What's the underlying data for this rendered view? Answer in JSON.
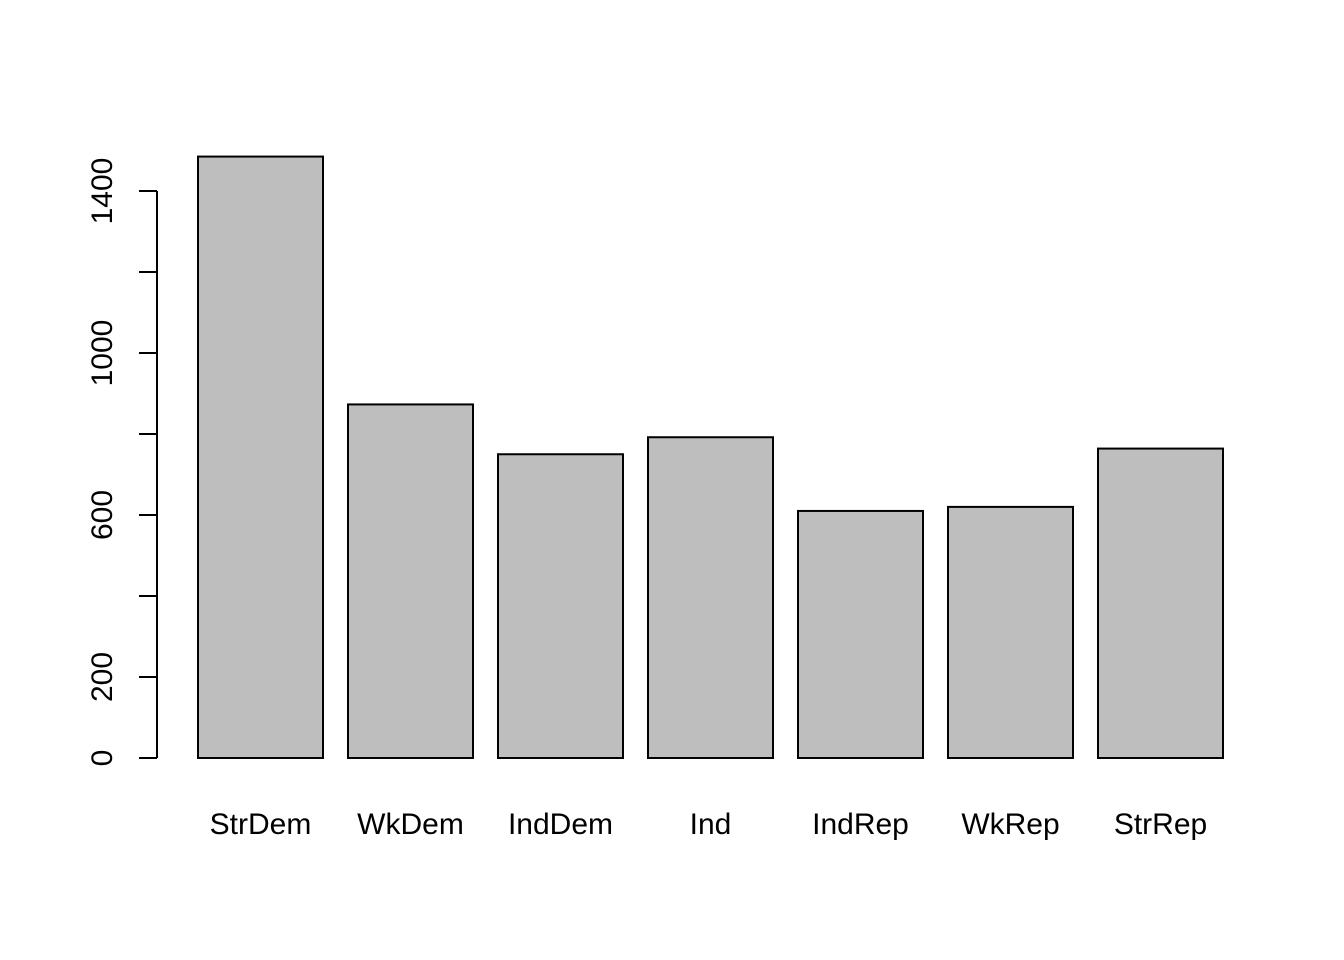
{
  "chart_data": {
    "type": "bar",
    "title": "",
    "xlabel": "",
    "ylabel": "",
    "categories": [
      "StrDem",
      "WkDem",
      "IndDem",
      "Ind",
      "IndRep",
      "WkRep",
      "StrRep"
    ],
    "values": [
      1485,
      873,
      750,
      792,
      610,
      620,
      764
    ],
    "ylim": [
      0,
      1485
    ],
    "yticks": [
      0,
      200,
      600,
      1000,
      1400
    ],
    "yminorticks": [
      400,
      800,
      1200
    ],
    "grid": false,
    "legend": "none",
    "bar_fill": "#bebebe",
    "bar_stroke": "#000000"
  }
}
